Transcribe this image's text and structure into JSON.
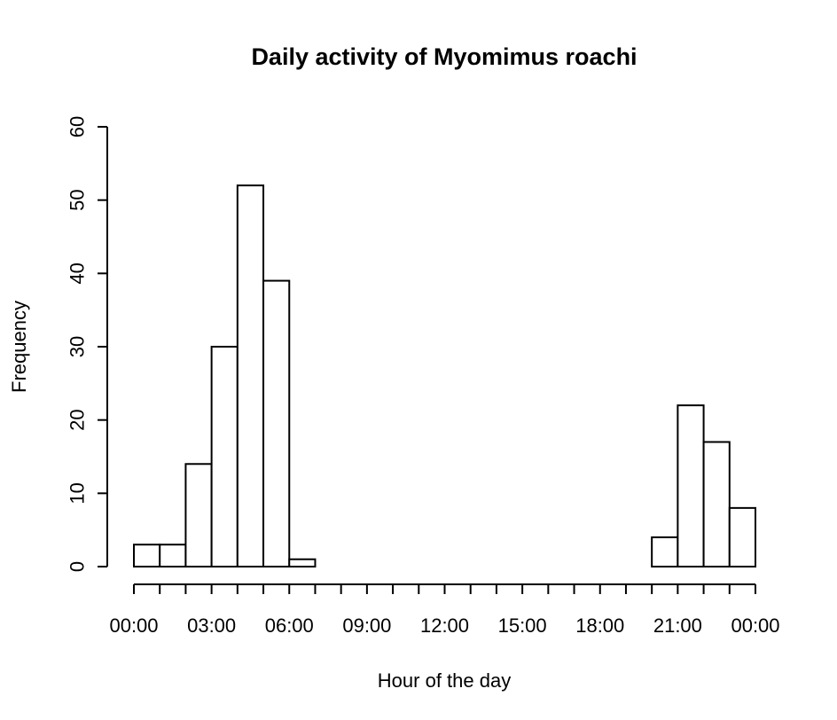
{
  "chart_data": {
    "type": "bar",
    "title": "Daily activity of Myomimus roachi",
    "xlabel": "Hour of the day",
    "ylabel": "Frequency",
    "ylim": [
      0,
      60
    ],
    "yticks": [
      0,
      10,
      20,
      30,
      40,
      50,
      60
    ],
    "xlim": [
      0,
      24
    ],
    "x_ticks_hours": [
      0,
      1,
      2,
      3,
      4,
      5,
      6,
      7,
      8,
      9,
      10,
      11,
      12,
      13,
      14,
      15,
      16,
      17,
      18,
      19,
      20,
      21,
      22,
      23,
      24
    ],
    "x_tick_labels": [
      "00:00",
      "03:00",
      "06:00",
      "09:00",
      "12:00",
      "15:00",
      "18:00",
      "21:00",
      "00:00"
    ],
    "bins": [
      {
        "start": 0,
        "end": 1,
        "value": 3
      },
      {
        "start": 1,
        "end": 2,
        "value": 3
      },
      {
        "start": 2,
        "end": 3,
        "value": 14
      },
      {
        "start": 3,
        "end": 4,
        "value": 30
      },
      {
        "start": 4,
        "end": 5,
        "value": 52
      },
      {
        "start": 5,
        "end": 6,
        "value": 39
      },
      {
        "start": 6,
        "end": 7,
        "value": 1
      },
      {
        "start": 7,
        "end": 8,
        "value": 0
      },
      {
        "start": 8,
        "end": 9,
        "value": 0
      },
      {
        "start": 9,
        "end": 10,
        "value": 0
      },
      {
        "start": 10,
        "end": 11,
        "value": 0
      },
      {
        "start": 11,
        "end": 12,
        "value": 0
      },
      {
        "start": 12,
        "end": 13,
        "value": 0
      },
      {
        "start": 13,
        "end": 14,
        "value": 0
      },
      {
        "start": 14,
        "end": 15,
        "value": 0
      },
      {
        "start": 15,
        "end": 16,
        "value": 0
      },
      {
        "start": 16,
        "end": 17,
        "value": 0
      },
      {
        "start": 17,
        "end": 18,
        "value": 0
      },
      {
        "start": 18,
        "end": 19,
        "value": 0
      },
      {
        "start": 19,
        "end": 20,
        "value": 0
      },
      {
        "start": 20,
        "end": 21,
        "value": 4
      },
      {
        "start": 21,
        "end": 22,
        "value": 22
      },
      {
        "start": 22,
        "end": 23,
        "value": 17
      },
      {
        "start": 23,
        "end": 24,
        "value": 8
      }
    ],
    "grid": false
  }
}
